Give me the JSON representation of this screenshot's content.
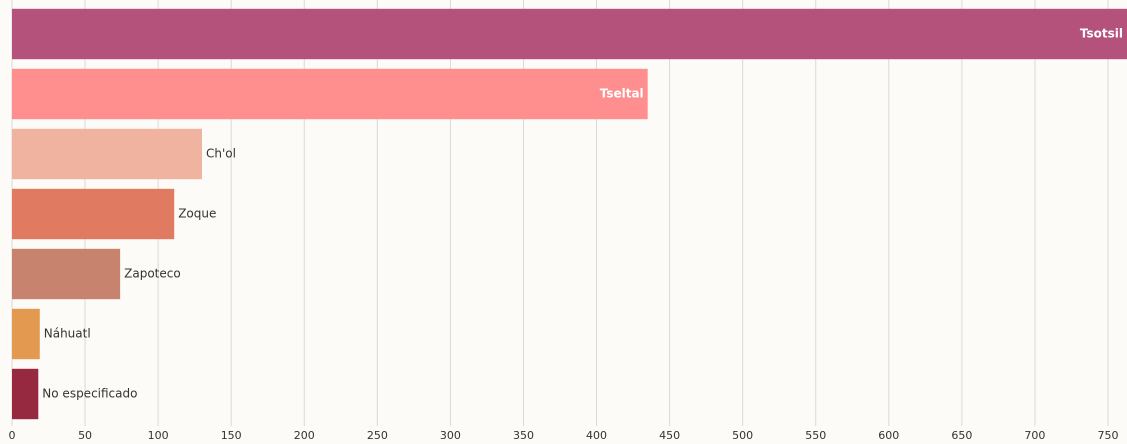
{
  "chart_data": {
    "type": "bar",
    "orientation": "horizontal",
    "categories": [
      "Tsotsil",
      "Tseltal",
      "Ch'ol",
      "Zoque",
      "Zapoteco",
      "Náhuatl",
      "No especificado"
    ],
    "values": [
      763,
      435,
      130,
      111,
      74,
      19,
      18
    ],
    "colors": [
      "#b5527c",
      "#ff8f8f",
      "#f0b3a0",
      "#e07a60",
      "#c8836e",
      "#e39a50",
      "#962840"
    ],
    "xlim": [
      0,
      763
    ],
    "xticks": [
      0,
      50,
      100,
      150,
      200,
      250,
      300,
      350,
      400,
      450,
      500,
      550,
      600,
      650,
      700,
      750
    ],
    "grid": true
  }
}
